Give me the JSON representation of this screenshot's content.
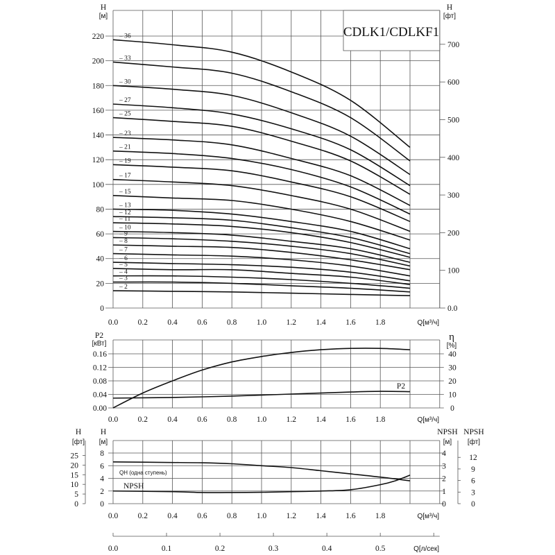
{
  "chart_data": [
    {
      "type": "line",
      "title": "CDLK1/CDLKF1",
      "xlabel": "Q[м³/ч]",
      "ylabel": "H",
      "ylabel_unit": "[м]",
      "y2label": "H",
      "y2label_unit": "[фт]",
      "xlim": [
        0,
        2.2
      ],
      "ylim": [
        0,
        240
      ],
      "xticks": [
        "0.0",
        "0.2",
        "0.4",
        "0.6",
        "0.8",
        "1.0",
        "1.2",
        "1.4",
        "1.6",
        "1.8"
      ],
      "yticks": [
        0,
        20,
        40,
        60,
        80,
        100,
        120,
        140,
        160,
        180,
        200,
        220
      ],
      "y2ticks": [
        "0.0",
        "100",
        "200",
        "300",
        "400",
        "500",
        "600",
        "700"
      ],
      "grid": true,
      "x": [
        0,
        0.4,
        0.8,
        1.2,
        1.6,
        2.0
      ],
      "series": [
        {
          "name": "36",
          "values": [
            217,
            213,
            207,
            191,
            168,
            130
          ]
        },
        {
          "name": "33",
          "values": [
            199,
            195,
            190,
            175,
            154,
            119
          ]
        },
        {
          "name": "30",
          "values": [
            180,
            177,
            172,
            158,
            139,
            108
          ]
        },
        {
          "name": "27",
          "values": [
            165,
            162,
            157,
            145,
            128,
            99
          ]
        },
        {
          "name": "25",
          "values": [
            154,
            151,
            147,
            135,
            119,
            92
          ]
        },
        {
          "name": "23",
          "values": [
            138,
            136,
            132,
            121,
            107,
            83
          ]
        },
        {
          "name": "21",
          "values": [
            127,
            125,
            121,
            112,
            98,
            76
          ]
        },
        {
          "name": "19",
          "values": [
            116,
            114,
            111,
            102,
            90,
            70
          ]
        },
        {
          "name": "17",
          "values": [
            104,
            102,
            99,
            91,
            80,
            62
          ]
        },
        {
          "name": "15",
          "values": [
            91,
            89,
            87,
            80,
            70,
            55
          ]
        },
        {
          "name": "13",
          "values": [
            80,
            79,
            76,
            70,
            62,
            48
          ]
        },
        {
          "name": "12",
          "values": [
            74,
            73,
            71,
            65,
            57,
            44
          ]
        },
        {
          "name": "11",
          "values": [
            69,
            68,
            66,
            61,
            53,
            41
          ]
        },
        {
          "name": "10",
          "values": [
            62,
            61,
            59,
            54,
            48,
            37
          ]
        },
        {
          "name": "9",
          "values": [
            57,
            56,
            54,
            50,
            44,
            34
          ]
        },
        {
          "name": "8",
          "values": [
            51,
            50,
            49,
            45,
            39,
            31
          ]
        },
        {
          "name": "7",
          "values": [
            44,
            43,
            42,
            39,
            34,
            26
          ]
        },
        {
          "name": "6",
          "values": [
            37,
            36,
            35,
            33,
            29,
            22
          ]
        },
        {
          "name": "5",
          "values": [
            32,
            31,
            31,
            28,
            25,
            19
          ]
        },
        {
          "name": "4",
          "values": [
            26,
            26,
            25,
            23,
            20,
            16
          ]
        },
        {
          "name": "3",
          "values": [
            21,
            21,
            20,
            18,
            16,
            13
          ]
        },
        {
          "name": "2",
          "values": [
            14,
            13.5,
            13,
            12,
            11,
            10
          ]
        }
      ]
    },
    {
      "type": "line",
      "xlabel": "Q[м³/ч]",
      "ylabel": "P2",
      "ylabel_unit": "[кВт]",
      "y2label": "η",
      "y2label_unit": "[%]",
      "xlim": [
        0,
        2.2
      ],
      "ylim": [
        0,
        0.2
      ],
      "y2lim": [
        0,
        50
      ],
      "xticks": [
        "0.0",
        "0.2",
        "0.4",
        "0.6",
        "0.8",
        "1.0",
        "1.2",
        "1.4",
        "1.6",
        "1.8"
      ],
      "yticks": [
        "0.00",
        "0.04",
        "0.08",
        "0.12",
        "0.16"
      ],
      "y2ticks": [
        "0",
        "10",
        "20",
        "30",
        "40"
      ],
      "grid": true,
      "series": [
        {
          "name": "P2",
          "axis": "left",
          "x": [
            0,
            0.4,
            0.8,
            1.2,
            1.6,
            1.8,
            2.0
          ],
          "values": [
            0.029,
            0.031,
            0.035,
            0.041,
            0.047,
            0.049,
            0.048
          ]
        },
        {
          "axis": "right",
          "x": [
            0,
            0.2,
            0.4,
            0.6,
            0.8,
            1.0,
            1.2,
            1.4,
            1.6,
            1.8,
            2.0
          ],
          "values": [
            0,
            11,
            20,
            28,
            34,
            38,
            41,
            43,
            44,
            44,
            43
          ]
        }
      ]
    },
    {
      "type": "line",
      "xlabel": "Q[м³/ч]",
      "ylabel": "H",
      "ylabel_unit": "[м]",
      "y0label": "H",
      "y0label_unit": "[фт]",
      "y2label": "NPSH",
      "y2label_unit": "[м]",
      "y3label": "NPSH",
      "y3label_unit": "[фт]",
      "xlim": [
        0,
        2.2
      ],
      "ylim": [
        0,
        10
      ],
      "y2lim": [
        0,
        5
      ],
      "xticks": [
        "0.0",
        "0.2",
        "0.4",
        "0.6",
        "0.8",
        "1.0",
        "1.2",
        "1.4",
        "1.6",
        "1.8"
      ],
      "yticks": [
        "0",
        "2",
        "4",
        "6",
        "8"
      ],
      "y0ticks": [
        "0",
        "5",
        "10",
        "15",
        "20",
        "25"
      ],
      "y2ticks": [
        "0",
        "1",
        "2",
        "3",
        "4"
      ],
      "y3ticks": [
        "0",
        "3",
        "6",
        "9",
        "12"
      ],
      "grid": true,
      "series": [
        {
          "name": "QH (одна ступень)",
          "axis": "left",
          "x": [
            0,
            0.2,
            0.4,
            0.6,
            0.8,
            1.0,
            1.2,
            1.4,
            1.6,
            1.8,
            2.0
          ],
          "values": [
            6.6,
            6.55,
            6.5,
            6.45,
            6.3,
            6.0,
            5.7,
            5.2,
            4.7,
            4.2,
            3.6
          ]
        },
        {
          "name": "NPSH",
          "axis": "right",
          "x": [
            0,
            0.4,
            0.6,
            0.8,
            1.0,
            1.2,
            1.4,
            1.6,
            1.8,
            1.9,
            2.0
          ],
          "values": [
            1.0,
            0.95,
            0.88,
            0.88,
            0.9,
            0.95,
            1.0,
            1.1,
            1.5,
            1.8,
            2.25
          ]
        }
      ]
    },
    {
      "type": "axis",
      "xlabel": "Q[л/сек]",
      "xlim": [
        0,
        0.6
      ],
      "xticks": [
        "0.0",
        "0.1",
        "0.2",
        "0.3",
        "0.4",
        "0.5"
      ]
    }
  ]
}
